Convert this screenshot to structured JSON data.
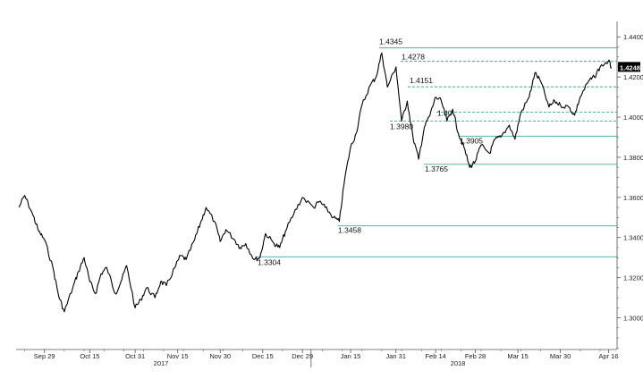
{
  "chart_data": {
    "type": "line",
    "title": "",
    "xlabel": "",
    "ylabel": "",
    "y_axis_position": "right",
    "grid": false,
    "ylim": [
      1.29,
      1.445
    ],
    "y_ticks": [
      "1.4400",
      "1.4200",
      "1.4000",
      "1.3800",
      "1.3600",
      "1.3400",
      "1.3200",
      "1.3000"
    ],
    "x_ticks": [
      "Sep 29",
      "Oct 15",
      "Oct 31",
      "Nov 15",
      "Nov 30",
      "Dec 15",
      "Dec 29",
      "Jan 15",
      "Jan 31",
      "Feb 14",
      "Feb 28",
      "Mar 15",
      "Mar 30",
      "Apr 16"
    ],
    "year_labels": [
      "2017",
      "2018"
    ],
    "last_value_label": "1.4248",
    "series": [
      {
        "x": [
          "Sep 20",
          "Sep 22",
          "Sep 25",
          "Sep 27",
          "Sep 29",
          "Oct 2",
          "Oct 4",
          "Oct 6",
          "Oct 9",
          "Oct 11",
          "Oct 13",
          "Oct 15",
          "Oct 17",
          "Oct 19",
          "Oct 21",
          "Oct 24",
          "Oct 26",
          "Oct 28",
          "Oct 31",
          "Nov 2",
          "Nov 4",
          "Nov 7",
          "Nov 9",
          "Nov 11",
          "Nov 14",
          "Nov 16",
          "Nov 18",
          "Nov 21",
          "Nov 23",
          "Nov 25",
          "Nov 28",
          "Nov 30",
          "Dec 2",
          "Dec 5",
          "Dec 7",
          "Dec 9",
          "Dec 12",
          "Dec 14",
          "Dec 16",
          "Dec 19",
          "Dec 21",
          "Dec 23",
          "Dec 26",
          "Dec 29",
          "Jan 2",
          "Jan 4",
          "Jan 6",
          "Jan 9",
          "Jan 11",
          "Jan 13",
          "Jan 15",
          "Jan 17",
          "Jan 19",
          "Jan 22",
          "Jan 24",
          "Jan 26",
          "Jan 28",
          "Jan 31",
          "Feb 2",
          "Feb 4",
          "Feb 6",
          "Feb 8",
          "Feb 10",
          "Feb 12",
          "Feb 14",
          "Feb 16",
          "Feb 18",
          "Feb 20",
          "Feb 22",
          "Feb 24",
          "Feb 26",
          "Feb 28",
          "Mar 2",
          "Mar 5",
          "Mar 7",
          "Mar 9",
          "Mar 12",
          "Mar 14",
          "Mar 16",
          "Mar 19",
          "Mar 21",
          "Mar 23",
          "Mar 26",
          "Mar 28",
          "Mar 30",
          "Apr 2",
          "Apr 4",
          "Apr 6",
          "Apr 9",
          "Apr 11",
          "Apr 13",
          "Apr 16",
          "Apr 17"
        ],
        "values": [
          1.355,
          1.361,
          1.351,
          1.343,
          1.339,
          1.325,
          1.311,
          1.303,
          1.315,
          1.323,
          1.33,
          1.318,
          1.312,
          1.322,
          1.325,
          1.312,
          1.318,
          1.326,
          1.305,
          1.309,
          1.315,
          1.31,
          1.318,
          1.316,
          1.325,
          1.331,
          1.329,
          1.339,
          1.347,
          1.355,
          1.348,
          1.338,
          1.344,
          1.339,
          1.335,
          1.337,
          1.329,
          1.33,
          1.342,
          1.337,
          1.335,
          1.343,
          1.352,
          1.36,
          1.355,
          1.358,
          1.355,
          1.35,
          1.348,
          1.37,
          1.385,
          1.392,
          1.406,
          1.416,
          1.42,
          1.432,
          1.415,
          1.425,
          1.398,
          1.408,
          1.39,
          1.379,
          1.395,
          1.401,
          1.41,
          1.408,
          1.398,
          1.404,
          1.392,
          1.385,
          1.375,
          1.378,
          1.386,
          1.382,
          1.389,
          1.39,
          1.396,
          1.389,
          1.402,
          1.41,
          1.422,
          1.418,
          1.405,
          1.408,
          1.406,
          1.405,
          1.401,
          1.41,
          1.418,
          1.42,
          1.425,
          1.428,
          1.4248
        ]
      }
    ],
    "level_lines": [
      {
        "value": 1.4345,
        "label": "1.4345",
        "style": "solid"
      },
      {
        "value": 1.4278,
        "label": "1.4278",
        "style": "dashed"
      },
      {
        "value": 1.4151,
        "label": "1.4151",
        "style": "dashed"
      },
      {
        "value": 1.4025,
        "label": "1.40",
        "style": "dashed"
      },
      {
        "value": 1.398,
        "label": "1.3980",
        "style": "dashed"
      },
      {
        "value": 1.3905,
        "label": "1.3905",
        "style": "solid"
      },
      {
        "value": 1.3765,
        "label": "1.3765",
        "style": "solid"
      },
      {
        "value": 1.3458,
        "label": "1.3458",
        "style": "solid"
      },
      {
        "value": 1.3304,
        "label": "1.3304",
        "style": "solid"
      }
    ],
    "colors": {
      "line": "#000000",
      "level_line": "#3fa9a0",
      "axis": "#555555",
      "label_badge": "#000000"
    }
  }
}
